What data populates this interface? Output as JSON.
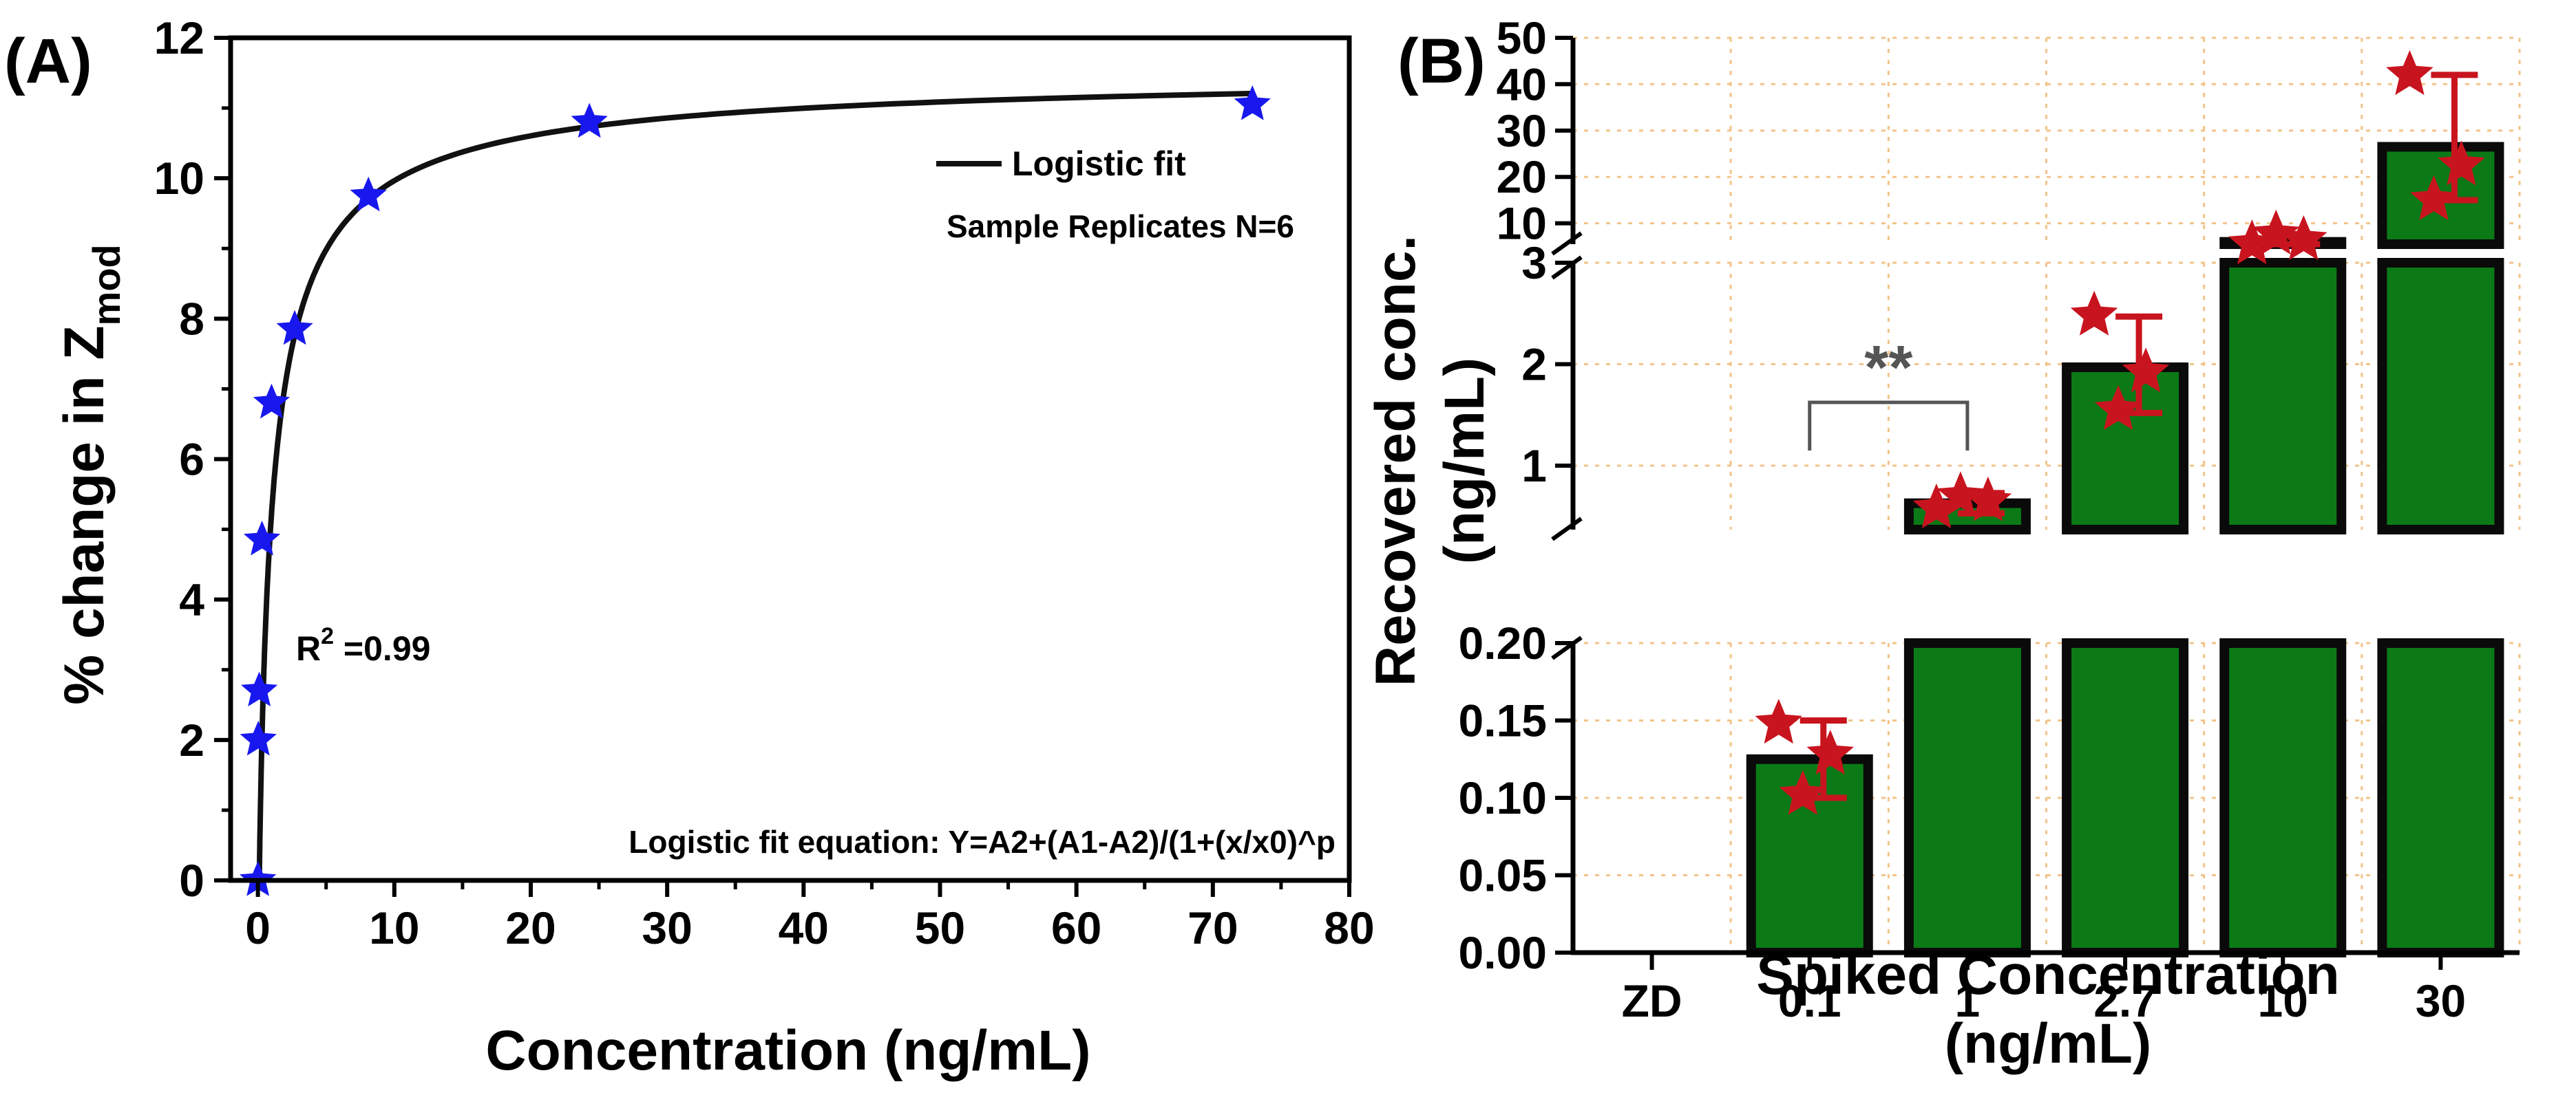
{
  "colors": {
    "axis": "#000000",
    "star_a": "#1818ee",
    "fit_line": "#111111",
    "bar_fill": "#0b7a16",
    "bar_edge": "#0a0a0a",
    "star_b": "#c8141e",
    "grid_b": "#f2c48a",
    "bracket": "#555555"
  },
  "chart_data": [
    {
      "panel_label": "(A)",
      "type": "scatter",
      "title": "",
      "xlabel": "Concentration  (ng/mL)",
      "ylabel_main": "% change in Z",
      "ylabel_sub": "mod",
      "xlim": [
        -2,
        80
      ],
      "ylim": [
        0,
        12
      ],
      "xticks": [
        "0",
        "10",
        "20",
        "30",
        "40",
        "50",
        "60",
        "70",
        "80"
      ],
      "yticks": [
        "0",
        "2",
        "4",
        "6",
        "8",
        "10",
        "12"
      ],
      "series": [
        {
          "name": "Sample Replicates",
          "marker": "star",
          "x": [
            0,
            0.03,
            0.1,
            0.3,
            1,
            2.7,
            8.1,
            24.3,
            72.9
          ],
          "y": [
            0,
            2.0,
            2.7,
            4.85,
            6.8,
            7.85,
            9.75,
            10.8,
            11.05
          ]
        },
        {
          "name": "Logistic fit",
          "type": "line",
          "fit_params": {
            "A1": -2,
            "A2": 11.55,
            "x0": 0.85,
            "p": 0.82
          }
        }
      ],
      "legend": {
        "label": "Logistic fit",
        "position": "top-right"
      },
      "annotations": {
        "replicates": "Sample Replicates N=6",
        "r2_prefix": "R",
        "r2_sup": "2",
        "r2_value": " =0.99",
        "equation": "Logistic fit equation: Y=A2+(A1-A2)/(1+(x/x0)^p"
      }
    },
    {
      "panel_label": "(B)",
      "type": "bar",
      "title": "",
      "xlabel_line1": "Spiked Concentration",
      "xlabel_line2": "(ng/mL)",
      "ylabel_line1": "Recovered conc.",
      "ylabel_line2": "(ng/mL)",
      "categories": [
        "ZD",
        "0.1",
        "1",
        "2.7",
        "10",
        "30"
      ],
      "values": [
        0,
        0.125,
        0.63,
        1.97,
        6,
        26.5
      ],
      "error_plus": [
        0,
        0.025,
        0.1,
        0.5,
        1.5,
        15.5
      ],
      "error_minus": [
        0,
        0.025,
        0.1,
        0.45,
        1.5,
        11.5
      ],
      "replicates": [
        [],
        [
          0.148,
          0.102,
          0.128
        ],
        [
          0.58,
          0.7,
          0.65
        ],
        [
          2.48,
          1.55,
          1.92
        ],
        [
          5.2,
          7.6,
          6.4
        ],
        [
          42,
          15,
          22.5
        ]
      ],
      "y_segments": [
        {
          "range": [
            0,
            0.2
          ],
          "ticks": [
            "0.00",
            "0.05",
            "0.10",
            "0.15",
            "0.20"
          ]
        },
        {
          "range": [
            0.37,
            3.0
          ],
          "ticks": [
            "1",
            "2",
            "3"
          ]
        },
        {
          "range": [
            5.5,
            50
          ],
          "ticks": [
            "10",
            "20",
            "30",
            "40",
            "50"
          ]
        }
      ],
      "significance": {
        "between": [
          "0.1",
          "1"
        ],
        "label": "**"
      },
      "grid": true
    }
  ]
}
